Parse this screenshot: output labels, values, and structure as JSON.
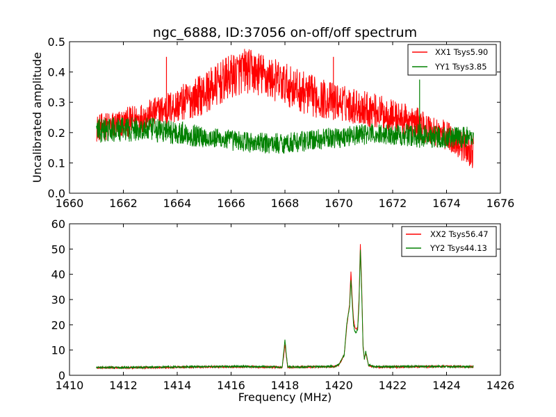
{
  "chart_data": [
    {
      "type": "line",
      "title": "ngc_6888, ID:37056 on-off/off spectrum",
      "xlabel": "",
      "ylabel": "Uncalibrated amplitude",
      "xlim": [
        1660,
        1676
      ],
      "ylim": [
        0.0,
        0.5
      ],
      "x_ticks": [
        "1660",
        "1662",
        "1664",
        "1666",
        "1668",
        "1670",
        "1672",
        "1674",
        "1676"
      ],
      "y_ticks": [
        "0.0",
        "0.1",
        "0.2",
        "0.3",
        "0.4",
        "0.5"
      ],
      "legend_position": "top-right",
      "x_range": [
        1661.0,
        1675.0
      ],
      "series": [
        {
          "name": "XX1 Tsys5.90",
          "color": "#ff0000",
          "envelope_x": [
            1661.0,
            1662.0,
            1663.0,
            1664.0,
            1665.0,
            1666.0,
            1666.5,
            1667.0,
            1668.0,
            1669.0,
            1670.0,
            1671.0,
            1672.0,
            1673.0,
            1674.0,
            1674.5,
            1675.0
          ],
          "envelope_low": [
            0.17,
            0.18,
            0.21,
            0.23,
            0.26,
            0.31,
            0.33,
            0.32,
            0.29,
            0.25,
            0.24,
            0.22,
            0.2,
            0.17,
            0.14,
            0.11,
            0.08
          ],
          "envelope_high": [
            0.26,
            0.28,
            0.31,
            0.35,
            0.4,
            0.46,
            0.48,
            0.47,
            0.43,
            0.39,
            0.36,
            0.34,
            0.31,
            0.28,
            0.24,
            0.21,
            0.19
          ],
          "spikes": [
            [
              1663.6,
              0.45
            ],
            [
              1669.8,
              0.45
            ]
          ]
        },
        {
          "name": "YY1 Tsys3.85",
          "color": "#008000",
          "envelope_x": [
            1661.0,
            1662.0,
            1663.0,
            1664.0,
            1665.0,
            1666.0,
            1667.0,
            1668.0,
            1669.0,
            1670.0,
            1671.0,
            1672.0,
            1673.0,
            1674.0,
            1675.0
          ],
          "envelope_low": [
            0.16,
            0.17,
            0.17,
            0.16,
            0.15,
            0.14,
            0.13,
            0.13,
            0.14,
            0.15,
            0.16,
            0.16,
            0.15,
            0.15,
            0.15
          ],
          "envelope_high": [
            0.25,
            0.25,
            0.25,
            0.24,
            0.22,
            0.21,
            0.2,
            0.2,
            0.21,
            0.22,
            0.23,
            0.23,
            0.23,
            0.22,
            0.22
          ],
          "spikes": [
            [
              1673.0,
              0.375
            ]
          ]
        }
      ]
    },
    {
      "type": "line",
      "title": "",
      "xlabel": "Frequency (MHz)",
      "ylabel": "",
      "xlim": [
        1410,
        1426
      ],
      "ylim": [
        0,
        60
      ],
      "x_ticks": [
        "1410",
        "1412",
        "1414",
        "1416",
        "1418",
        "1420",
        "1422",
        "1424",
        "1426"
      ],
      "y_ticks": [
        "0",
        "10",
        "20",
        "30",
        "40",
        "50",
        "60"
      ],
      "legend_position": "top-right",
      "x_range": [
        1411.0,
        1425.0
      ],
      "series": [
        {
          "name": "XX2 Tsys56.47",
          "color": "#ff0000",
          "x": [
            1411.0,
            1412.0,
            1413.0,
            1414.0,
            1415.0,
            1416.0,
            1417.0,
            1417.9,
            1418.0,
            1418.1,
            1419.0,
            1419.8,
            1420.0,
            1420.2,
            1420.3,
            1420.4,
            1420.45,
            1420.5,
            1420.55,
            1420.6,
            1420.65,
            1420.7,
            1420.75,
            1420.8,
            1420.85,
            1420.9,
            1420.95,
            1421.0,
            1421.1,
            1421.3,
            1422.0,
            1423.0,
            1424.0,
            1425.0
          ],
          "y": [
            3.0,
            3.0,
            3.1,
            3.2,
            3.3,
            3.4,
            3.3,
            3.2,
            12.0,
            3.2,
            3.3,
            3.4,
            4.0,
            8.0,
            20.0,
            28.0,
            41.0,
            30.0,
            22.0,
            19.0,
            18.0,
            19.0,
            30.0,
            52.0,
            35.0,
            12.0,
            6.0,
            9.0,
            4.0,
            3.3,
            3.3,
            3.4,
            3.5,
            3.4
          ]
        },
        {
          "name": "YY2 Tsys44.13",
          "color": "#008000",
          "x": [
            1411.0,
            1412.0,
            1413.0,
            1414.0,
            1415.0,
            1416.0,
            1417.0,
            1417.9,
            1418.0,
            1418.1,
            1419.0,
            1419.8,
            1420.0,
            1420.2,
            1420.3,
            1420.4,
            1420.45,
            1420.5,
            1420.55,
            1420.6,
            1420.65,
            1420.7,
            1420.75,
            1420.8,
            1420.85,
            1420.9,
            1420.95,
            1421.0,
            1421.1,
            1421.3,
            1422.0,
            1423.0,
            1424.0,
            1425.0
          ],
          "y": [
            3.1,
            3.1,
            3.2,
            3.3,
            3.4,
            3.5,
            3.4,
            3.3,
            14.0,
            3.3,
            3.4,
            3.5,
            4.2,
            8.0,
            21.0,
            27.0,
            38.0,
            28.0,
            20.0,
            17.0,
            17.0,
            18.0,
            28.0,
            50.0,
            33.0,
            11.0,
            6.5,
            9.5,
            4.2,
            3.4,
            3.4,
            3.5,
            3.5,
            3.4
          ]
        }
      ]
    }
  ]
}
